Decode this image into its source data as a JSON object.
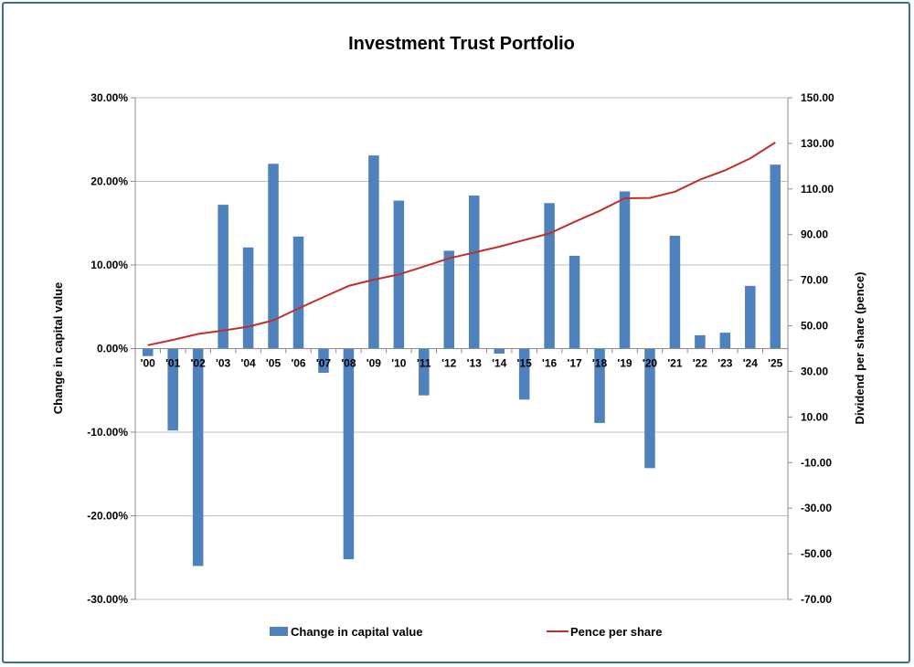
{
  "chart_data": {
    "type": "bar",
    "title": "Investment Trust Portfolio",
    "categories": [
      "'00",
      "'01",
      "'02",
      "'03",
      "'04",
      "'05",
      "'06",
      "'07",
      "'08",
      "'09",
      "'10",
      "'11",
      "'12",
      "'13",
      "'14",
      "'15",
      "'16",
      "'17",
      "'18",
      "'19",
      "'20",
      "'21",
      "'22",
      "'23",
      "'24",
      "'25"
    ],
    "series": [
      {
        "name": "Change in capital value",
        "type": "bar",
        "axis": "left",
        "color": "#4f81bd",
        "values": [
          -0.9,
          -9.8,
          -26.0,
          17.2,
          12.1,
          22.1,
          13.4,
          -2.9,
          -25.2,
          23.1,
          17.7,
          -5.6,
          11.7,
          18.3,
          -0.6,
          -6.1,
          17.4,
          11.1,
          -8.9,
          18.8,
          -14.3,
          13.5,
          1.6,
          1.9,
          7.5,
          22.0
        ]
      },
      {
        "name": "Pence per share",
        "type": "line",
        "axis": "right",
        "color": "#c0302b",
        "values": [
          41.5,
          43.8,
          46.4,
          47.9,
          49.6,
          52.4,
          57.6,
          62.6,
          67.5,
          70.2,
          72.5,
          76.0,
          79.6,
          82.1,
          84.7,
          87.6,
          90.5,
          95.6,
          100.4,
          105.9,
          106.1,
          108.8,
          114.1,
          118.2,
          123.4,
          130.4
        ]
      }
    ],
    "y_left": {
      "label": "Change in capital value",
      "ylim": [
        -30,
        30
      ],
      "ticks": [
        30,
        20,
        10,
        0,
        -10,
        -20,
        -30
      ],
      "tick_labels": [
        "30.00%",
        "20.00%",
        "10.00%",
        "0.00%",
        "-10.00%",
        "-20.00%",
        "-30.00%"
      ]
    },
    "y_right": {
      "label": "Dividend per share (pence)",
      "ylim": [
        -70,
        150
      ],
      "ticks": [
        150,
        130,
        110,
        90,
        70,
        50,
        30,
        10,
        -10,
        -30,
        -50,
        -70
      ],
      "tick_labels": [
        "150.00",
        "130.00",
        "110.00",
        "90.00",
        "70.00",
        "50.00",
        "30.00",
        "10.00",
        "-10.00",
        "-30.00",
        "-50.00",
        "-70.00"
      ]
    },
    "grid": true,
    "legend_position": "bottom"
  }
}
